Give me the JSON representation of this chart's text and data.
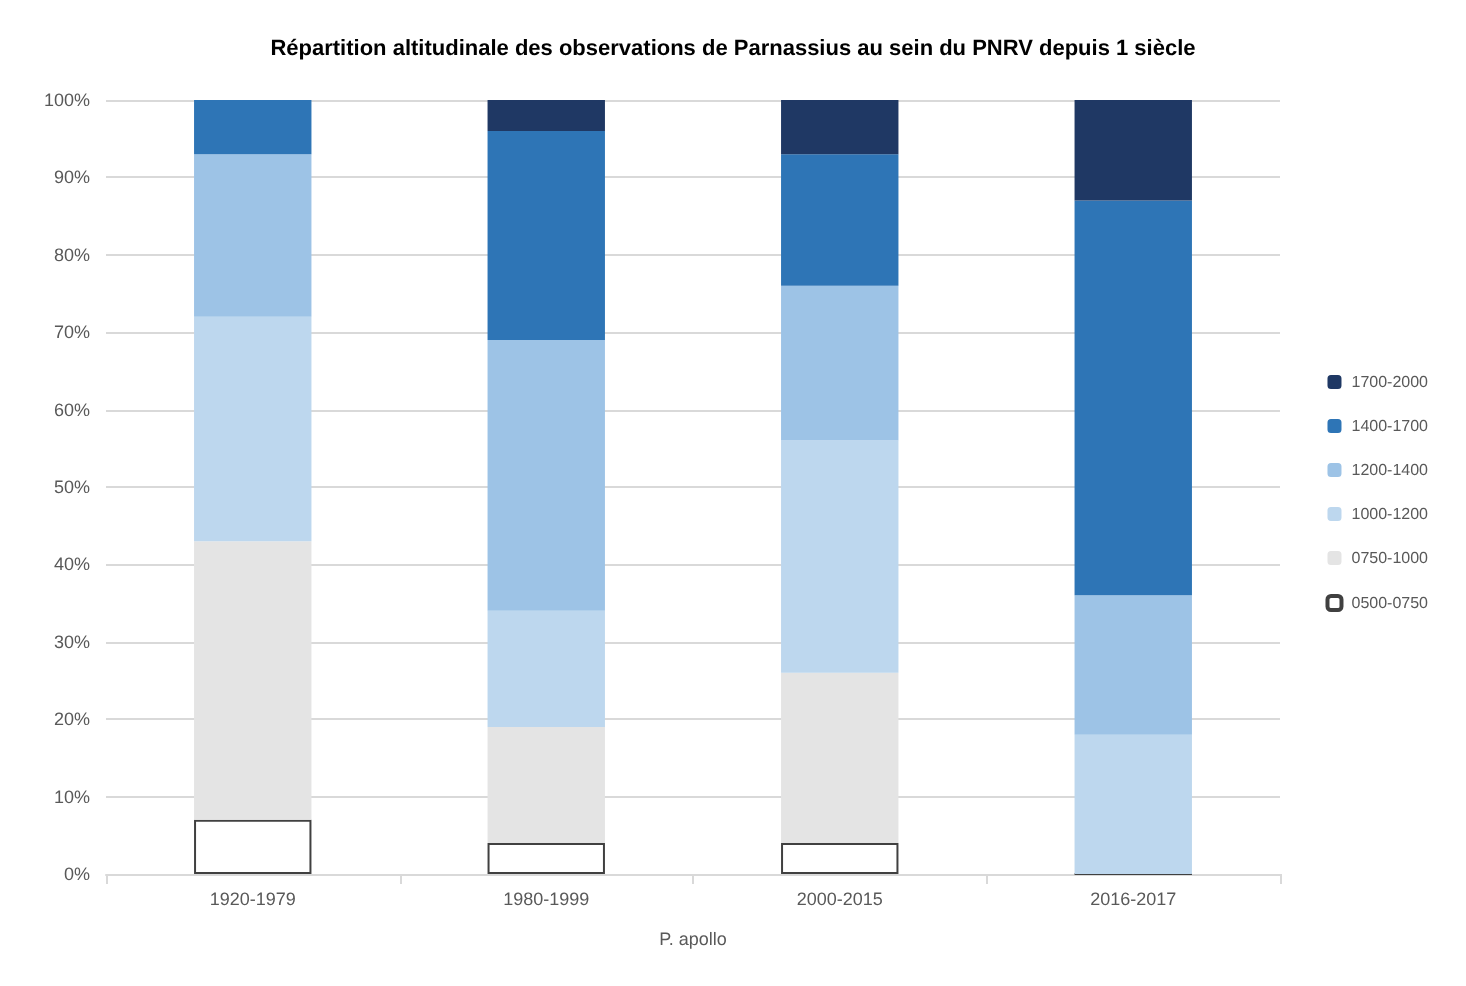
{
  "chart_data": {
    "type": "bar",
    "stacked": true,
    "title": "Répartition altitudinale des observations de Parnassius au sein du PNRV depuis 1 siècle",
    "xlabel": "P. apollo",
    "categories": [
      "1920-1979",
      "1980-1999",
      "2000-2015",
      "2016-2017"
    ],
    "series": [
      {
        "name": "0500-0750",
        "color": "#ffffff",
        "values": [
          7,
          4,
          4,
          0
        ]
      },
      {
        "name": "0750-1000",
        "color": "#e4e4e4",
        "values": [
          36,
          15,
          22,
          0
        ]
      },
      {
        "name": "1000-1200",
        "color": "#bdd7ee",
        "values": [
          29,
          15,
          30,
          18
        ]
      },
      {
        "name": "1200-1400",
        "color": "#9dc3e6",
        "values": [
          21,
          35,
          20,
          18
        ]
      },
      {
        "name": "1400-1700",
        "color": "#2e75b6",
        "values": [
          7,
          27,
          17,
          51
        ]
      },
      {
        "name": "1700-2000",
        "color": "#1f3864",
        "values": [
          0,
          4,
          7,
          13
        ]
      }
    ],
    "ylim": [
      0,
      100
    ],
    "yticks": [
      {
        "value": 0,
        "label": "0%"
      },
      {
        "value": 10,
        "label": "10%"
      },
      {
        "value": 20,
        "label": "20%"
      },
      {
        "value": 30,
        "label": "30%"
      },
      {
        "value": 40,
        "label": "40%"
      },
      {
        "value": 50,
        "label": "50%"
      },
      {
        "value": 60,
        "label": "60%"
      },
      {
        "value": 70,
        "label": "70%"
      },
      {
        "value": 80,
        "label": "80%"
      },
      {
        "value": 90,
        "label": "90%"
      },
      {
        "value": 100,
        "label": "100%"
      }
    ],
    "grid": "y",
    "legend": "right"
  }
}
